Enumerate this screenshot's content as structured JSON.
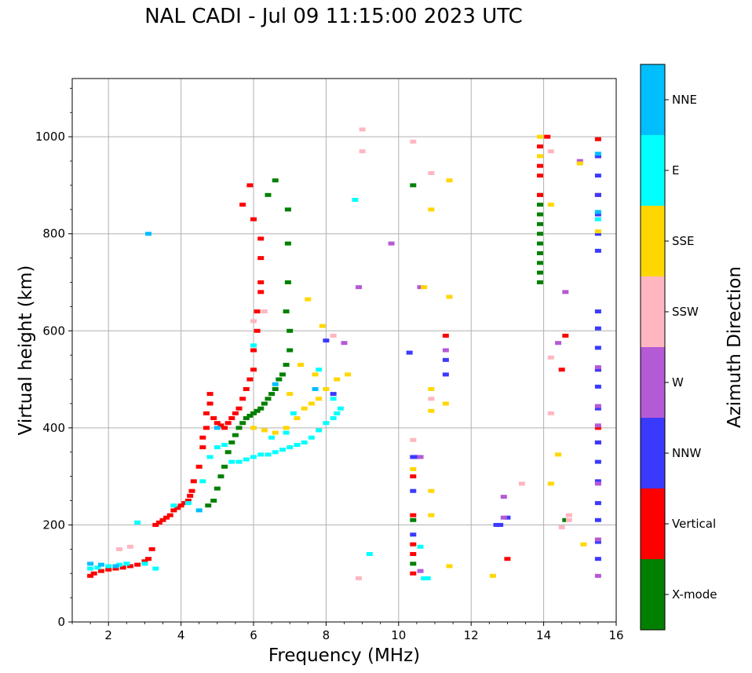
{
  "chart_data": {
    "type": "scatter",
    "title": "NAL CADI - Jul 09 11:15:00 2023 UTC",
    "xlabel": "Frequency (MHz)",
    "ylabel": "Virtual height (km)",
    "xlim": [
      1,
      16
    ],
    "ylim": [
      0,
      1120
    ],
    "xticks": [
      "2",
      "4",
      "6",
      "8",
      "10",
      "12",
      "14",
      "16"
    ],
    "yticks": [
      "0",
      "200",
      "400",
      "600",
      "800",
      "1000"
    ],
    "grid": true,
    "colorbar": {
      "label": "Azimuth Direction",
      "categories": [
        {
          "name": "X-mode",
          "color": "#008000"
        },
        {
          "name": "Vertical",
          "color": "#ff0000"
        },
        {
          "name": "NNW",
          "color": "#3a3aff"
        },
        {
          "name": "W",
          "color": "#b45ad6"
        },
        {
          "name": "SSW",
          "color": "#ffb6c1"
        },
        {
          "name": "SSE",
          "color": "#ffd700"
        },
        {
          "name": "E",
          "color": "#00ffff"
        },
        {
          "name": "NNE",
          "color": "#00bfff"
        }
      ]
    },
    "series": [
      {
        "name": "X-mode",
        "points": [
          [
            4.75,
            240
          ],
          [
            4.9,
            250
          ],
          [
            5.0,
            275
          ],
          [
            5.1,
            300
          ],
          [
            5.2,
            320
          ],
          [
            5.3,
            350
          ],
          [
            5.4,
            370
          ],
          [
            5.5,
            385
          ],
          [
            5.6,
            400
          ],
          [
            5.7,
            410
          ],
          [
            5.8,
            420
          ],
          [
            5.9,
            425
          ],
          [
            6.0,
            430
          ],
          [
            6.1,
            435
          ],
          [
            6.2,
            440
          ],
          [
            6.3,
            450
          ],
          [
            6.4,
            460
          ],
          [
            6.5,
            470
          ],
          [
            6.6,
            480
          ],
          [
            6.7,
            500
          ],
          [
            6.8,
            510
          ],
          [
            6.9,
            530
          ],
          [
            7.0,
            560
          ],
          [
            7.0,
            600
          ],
          [
            6.9,
            640
          ],
          [
            6.95,
            700
          ],
          [
            6.95,
            780
          ],
          [
            6.95,
            850
          ],
          [
            6.6,
            910
          ],
          [
            6.4,
            880
          ],
          [
            10.4,
            210
          ],
          [
            10.4,
            120
          ],
          [
            10.4,
            900
          ],
          [
            13.9,
            700
          ],
          [
            13.9,
            720
          ],
          [
            13.9,
            740
          ],
          [
            13.9,
            760
          ],
          [
            13.9,
            780
          ],
          [
            13.9,
            800
          ],
          [
            13.9,
            820
          ],
          [
            13.9,
            840
          ],
          [
            13.9,
            860
          ],
          [
            13.9,
            880
          ],
          [
            14.6,
            210
          ]
        ]
      },
      {
        "name": "Vertical",
        "points": [
          [
            1.5,
            95
          ],
          [
            1.6,
            100
          ],
          [
            1.8,
            105
          ],
          [
            2.0,
            108
          ],
          [
            2.2,
            110
          ],
          [
            2.4,
            112
          ],
          [
            2.6,
            115
          ],
          [
            2.8,
            118
          ],
          [
            3.0,
            125
          ],
          [
            3.1,
            130
          ],
          [
            3.2,
            150
          ],
          [
            3.3,
            200
          ],
          [
            3.4,
            205
          ],
          [
            3.5,
            210
          ],
          [
            3.6,
            215
          ],
          [
            3.7,
            220
          ],
          [
            3.8,
            230
          ],
          [
            3.9,
            235
          ],
          [
            4.0,
            240
          ],
          [
            4.1,
            245
          ],
          [
            4.2,
            250
          ],
          [
            4.25,
            260
          ],
          [
            4.3,
            270
          ],
          [
            4.35,
            290
          ],
          [
            4.5,
            320
          ],
          [
            4.6,
            360
          ],
          [
            4.6,
            380
          ],
          [
            4.7,
            400
          ],
          [
            4.7,
            430
          ],
          [
            4.8,
            450
          ],
          [
            4.8,
            470
          ],
          [
            4.9,
            420
          ],
          [
            5.0,
            410
          ],
          [
            5.1,
            405
          ],
          [
            5.2,
            400
          ],
          [
            5.3,
            410
          ],
          [
            5.4,
            420
          ],
          [
            5.5,
            430
          ],
          [
            5.6,
            440
          ],
          [
            5.7,
            460
          ],
          [
            5.8,
            480
          ],
          [
            5.9,
            500
          ],
          [
            6.0,
            520
          ],
          [
            6.0,
            560
          ],
          [
            6.1,
            600
          ],
          [
            6.1,
            640
          ],
          [
            6.2,
            680
          ],
          [
            6.2,
            700
          ],
          [
            6.2,
            750
          ],
          [
            6.2,
            790
          ],
          [
            6.0,
            830
          ],
          [
            5.7,
            860
          ],
          [
            5.9,
            900
          ],
          [
            10.4,
            100
          ],
          [
            10.4,
            140
          ],
          [
            10.4,
            160
          ],
          [
            10.4,
            300
          ],
          [
            10.4,
            220
          ],
          [
            11.3,
            590
          ],
          [
            13.0,
            130
          ],
          [
            13.9,
            880
          ],
          [
            13.9,
            920
          ],
          [
            13.9,
            940
          ],
          [
            13.9,
            980
          ],
          [
            14.1,
            1000
          ],
          [
            14.5,
            520
          ],
          [
            14.6,
            590
          ],
          [
            15.5,
            400
          ],
          [
            15.5,
            370
          ],
          [
            15.5,
            520
          ],
          [
            15.5,
            880
          ],
          [
            15.5,
            960
          ],
          [
            15.5,
            995
          ]
        ]
      },
      {
        "name": "NNW",
        "points": [
          [
            8.0,
            580
          ],
          [
            8.2,
            470
          ],
          [
            10.4,
            340
          ],
          [
            10.4,
            270
          ],
          [
            10.4,
            180
          ],
          [
            10.3,
            555
          ],
          [
            10.5,
            340
          ],
          [
            11.3,
            540
          ],
          [
            11.3,
            510
          ],
          [
            12.7,
            200
          ],
          [
            12.8,
            200
          ],
          [
            13.0,
            215
          ],
          [
            15.5,
            130
          ],
          [
            15.5,
            165
          ],
          [
            15.5,
            210
          ],
          [
            15.5,
            245
          ],
          [
            15.5,
            290
          ],
          [
            15.5,
            330
          ],
          [
            15.5,
            370
          ],
          [
            15.5,
            440
          ],
          [
            15.5,
            485
          ],
          [
            15.5,
            520
          ],
          [
            15.5,
            565
          ],
          [
            15.5,
            605
          ],
          [
            15.5,
            640
          ],
          [
            15.5,
            765
          ],
          [
            15.5,
            800
          ],
          [
            15.5,
            840
          ],
          [
            15.5,
            880
          ],
          [
            15.5,
            920
          ],
          [
            15.5,
            960
          ]
        ]
      },
      {
        "name": "W",
        "points": [
          [
            8.5,
            575
          ],
          [
            8.9,
            690
          ],
          [
            9.8,
            780
          ],
          [
            10.6,
            690
          ],
          [
            10.6,
            340
          ],
          [
            10.6,
            105
          ],
          [
            11.3,
            560
          ],
          [
            12.9,
            258
          ],
          [
            12.9,
            215
          ],
          [
            14.4,
            575
          ],
          [
            14.6,
            680
          ],
          [
            15.0,
            950
          ],
          [
            15.5,
            95
          ],
          [
            15.5,
            170
          ],
          [
            15.5,
            285
          ],
          [
            15.5,
            405
          ],
          [
            15.5,
            445
          ],
          [
            15.5,
            525
          ]
        ]
      },
      {
        "name": "SSW",
        "points": [
          [
            2.3,
            150
          ],
          [
            2.6,
            155
          ],
          [
            6.0,
            620
          ],
          [
            6.3,
            640
          ],
          [
            8.2,
            590
          ],
          [
            8.9,
            90
          ],
          [
            9.0,
            970
          ],
          [
            9.0,
            1015
          ],
          [
            10.4,
            375
          ],
          [
            10.4,
            990
          ],
          [
            10.9,
            925
          ],
          [
            10.9,
            460
          ],
          [
            13.4,
            285
          ],
          [
            14.2,
            430
          ],
          [
            14.2,
            545
          ],
          [
            14.5,
            195
          ],
          [
            14.7,
            210
          ],
          [
            14.7,
            220
          ],
          [
            14.2,
            970
          ]
        ]
      },
      {
        "name": "SSE",
        "points": [
          [
            6.0,
            400
          ],
          [
            6.3,
            395
          ],
          [
            6.6,
            390
          ],
          [
            6.9,
            400
          ],
          [
            7.2,
            420
          ],
          [
            7.4,
            440
          ],
          [
            7.6,
            450
          ],
          [
            7.8,
            460
          ],
          [
            8.0,
            480
          ],
          [
            8.3,
            500
          ],
          [
            8.6,
            510
          ],
          [
            7.0,
            470
          ],
          [
            7.3,
            530
          ],
          [
            7.7,
            510
          ],
          [
            7.9,
            610
          ],
          [
            7.5,
            665
          ],
          [
            10.4,
            315
          ],
          [
            10.7,
            690
          ],
          [
            10.9,
            435
          ],
          [
            10.9,
            480
          ],
          [
            10.9,
            850
          ],
          [
            10.9,
            270
          ],
          [
            10.9,
            220
          ],
          [
            11.3,
            450
          ],
          [
            11.4,
            115
          ],
          [
            11.4,
            670
          ],
          [
            11.4,
            910
          ],
          [
            12.6,
            95
          ],
          [
            13.9,
            1000
          ],
          [
            13.9,
            960
          ],
          [
            14.2,
            860
          ],
          [
            14.2,
            285
          ],
          [
            14.4,
            345
          ],
          [
            15.1,
            160
          ],
          [
            15.0,
            945
          ],
          [
            15.5,
            805
          ]
        ]
      },
      {
        "name": "E",
        "points": [
          [
            1.5,
            110
          ],
          [
            1.7,
            112
          ],
          [
            2.0,
            115
          ],
          [
            2.3,
            118
          ],
          [
            2.5,
            120
          ],
          [
            2.8,
            205
          ],
          [
            3.0,
            120
          ],
          [
            3.3,
            110
          ],
          [
            3.8,
            240
          ],
          [
            4.2,
            245
          ],
          [
            4.6,
            290
          ],
          [
            4.8,
            340
          ],
          [
            5.0,
            360
          ],
          [
            5.2,
            365
          ],
          [
            5.4,
            330
          ],
          [
            5.6,
            330
          ],
          [
            5.8,
            335
          ],
          [
            6.0,
            340
          ],
          [
            6.2,
            345
          ],
          [
            6.4,
            345
          ],
          [
            6.6,
            350
          ],
          [
            6.8,
            355
          ],
          [
            7.0,
            360
          ],
          [
            7.2,
            365
          ],
          [
            7.4,
            370
          ],
          [
            7.6,
            380
          ],
          [
            7.8,
            395
          ],
          [
            8.0,
            410
          ],
          [
            8.2,
            420
          ],
          [
            8.3,
            430
          ],
          [
            8.4,
            440
          ],
          [
            8.2,
            460
          ],
          [
            7.8,
            520
          ],
          [
            6.5,
            380
          ],
          [
            6.9,
            390
          ],
          [
            7.1,
            430
          ],
          [
            6.0,
            570
          ],
          [
            8.8,
            870
          ],
          [
            9.2,
            140
          ],
          [
            10.6,
            155
          ],
          [
            10.7,
            90
          ],
          [
            10.8,
            90
          ],
          [
            15.5,
            830
          ]
        ]
      },
      {
        "name": "NNE",
        "points": [
          [
            1.5,
            120
          ],
          [
            1.8,
            118
          ],
          [
            2.2,
            115
          ],
          [
            3.1,
            800
          ],
          [
            4.5,
            230
          ],
          [
            5.0,
            400
          ],
          [
            6.6,
            490
          ],
          [
            7.7,
            480
          ],
          [
            15.5,
            845
          ],
          [
            15.5,
            965
          ]
        ]
      }
    ]
  }
}
